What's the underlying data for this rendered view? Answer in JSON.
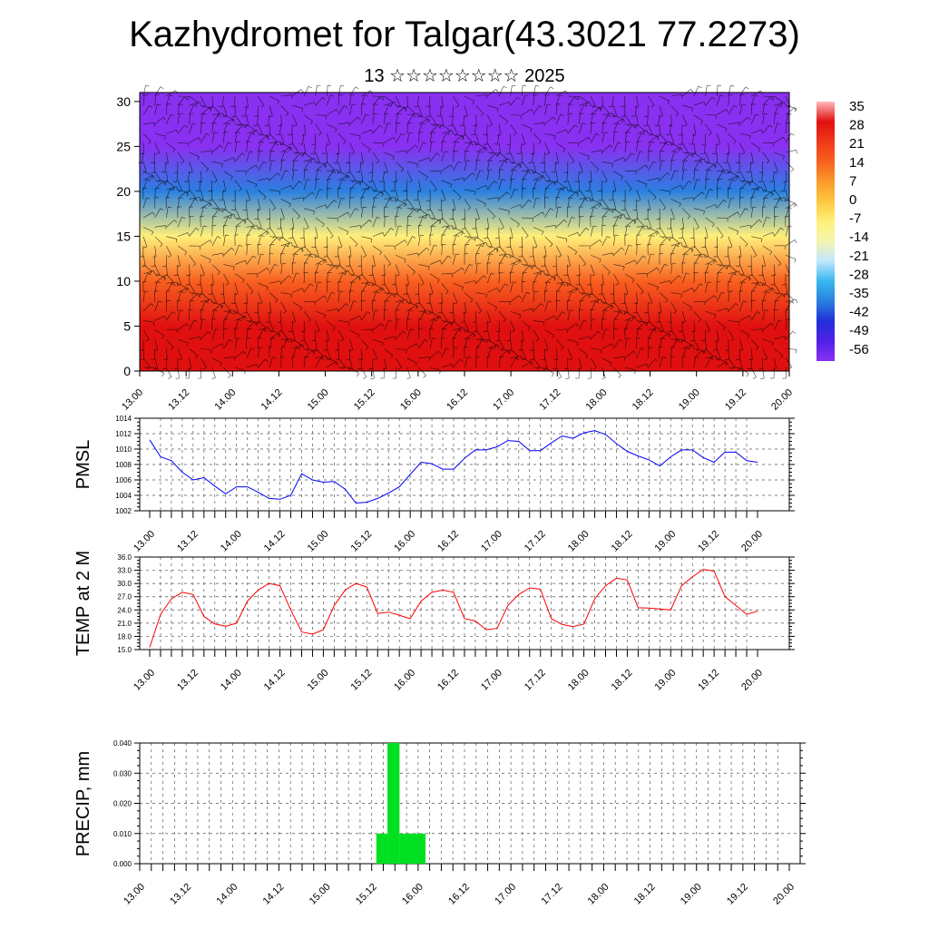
{
  "header": {
    "title": "Kazhydromet for Talgar(43.3021 77.2273)",
    "subtitle": "13 ☆☆☆☆☆☆☆☆ 2025"
  },
  "chart_data": [
    {
      "id": "cross-section",
      "type": "heatmap",
      "x_tick_labels": [
        "13.00",
        "13.12",
        "14.00",
        "14.12",
        "15.00",
        "15.12",
        "16.00",
        "16.12",
        "17.00",
        "17.12",
        "18.00",
        "18.12",
        "19.00",
        "19.12",
        "20.00"
      ],
      "y_ticks": [
        0,
        5,
        10,
        15,
        20,
        25,
        30
      ],
      "ylim": [
        0,
        31
      ],
      "colorbar_labels": [
        "35",
        "28",
        "21",
        "14",
        "7",
        "0",
        "-7",
        "-14",
        "-21",
        "-28",
        "-35",
        "-42",
        "-49",
        "-56"
      ],
      "colorbar_colors": [
        "#ffb8b8",
        "#e01010",
        "#f03818",
        "#f86020",
        "#fb9a2a",
        "#fdc840",
        "#fff07a",
        "#f5f5b0",
        "#bfe6ff",
        "#38b8f0",
        "#2a80e0",
        "#2030d8",
        "#5020e8",
        "#8a30f0"
      ],
      "layers": [
        {
          "z": 0,
          "temp": 33
        },
        {
          "z": 5,
          "temp": 28
        },
        {
          "z": 10,
          "temp": 14
        },
        {
          "z": 15,
          "temp": -5
        },
        {
          "z": 20,
          "temp": -30
        },
        {
          "z": 25,
          "temp": -52
        },
        {
          "z": 31,
          "temp": -60
        }
      ],
      "grid": false
    },
    {
      "id": "pmsl",
      "type": "line",
      "ylabel": "PMSL",
      "ylim": [
        1002,
        1014
      ],
      "y_ticks": [
        1002,
        1004,
        1006,
        1008,
        1010,
        1012,
        1014
      ],
      "x_tick_labels": [
        "13.00",
        "13.12",
        "14.00",
        "14.12",
        "15.00",
        "15.12",
        "16.00",
        "16.12",
        "17.00",
        "17.12",
        "18.00",
        "18.12",
        "19.00",
        "19.12",
        "20.00"
      ],
      "series": [
        {
          "color": "#0000ff",
          "values": [
            1011.2,
            1009,
            1008.5,
            1007,
            1006,
            1006.3,
            1005.2,
            1004.2,
            1005.1,
            1005.1,
            1004.4,
            1003.6,
            1003.5,
            1004,
            1006.8,
            1006,
            1005.7,
            1005.8,
            1004.8,
            1003,
            1003.1,
            1003.6,
            1004.3,
            1005.1,
            1006.7,
            1008.3,
            1008.1,
            1007.4,
            1007.4,
            1008.8,
            1009.9,
            1009.9,
            1010.3,
            1011.1,
            1011,
            1009.8,
            1009.8,
            1010.8,
            1011.7,
            1011.4,
            1012.1,
            1012.4,
            1011.9,
            1010.7,
            1009.7,
            1009.1,
            1008.6,
            1007.8,
            1009,
            1009.9,
            1009.9,
            1008.9,
            1008.3,
            1009.6,
            1009.6,
            1008.5,
            1008.3
          ]
        }
      ],
      "grid": true
    },
    {
      "id": "t2m",
      "type": "line",
      "ylabel": "TEMP at 2 M",
      "ylim": [
        15,
        36
      ],
      "y_ticks": [
        "15.0",
        "18.0",
        "21.0",
        "24.0",
        "27.0",
        "30.0",
        "33.0",
        "36.0"
      ],
      "x_tick_labels": [
        "13.00",
        "13.12",
        "14.00",
        "14.12",
        "15.00",
        "15.12",
        "16.00",
        "16.12",
        "17.00",
        "17.12",
        "18.00",
        "18.12",
        "19.00",
        "19.12",
        "20.00"
      ],
      "series": [
        {
          "color": "#ff0000",
          "values": [
            15.5,
            23,
            26.5,
            28,
            27.5,
            22.5,
            20.8,
            20.3,
            21,
            26,
            28.5,
            30,
            29.5,
            24,
            19,
            18.5,
            19.5,
            25,
            28.5,
            30,
            29.2,
            23.2,
            23.5,
            22.8,
            22,
            26,
            28,
            28.5,
            28,
            22,
            21.5,
            19.5,
            19.8,
            25,
            27.5,
            29,
            28.7,
            22,
            20.7,
            20.2,
            20.8,
            26.5,
            29.5,
            31.2,
            30.8,
            24.5,
            24.4,
            24.2,
            24,
            29.5,
            31.5,
            33.2,
            32.8,
            27,
            25,
            23,
            23.7
          ]
        }
      ],
      "grid": true
    },
    {
      "id": "precip",
      "type": "bar",
      "ylabel": "PRECIP, mm",
      "ylim": [
        0,
        0.04
      ],
      "y_ticks": [
        "0.000",
        "0.010",
        "0.020",
        "0.030",
        "0.040"
      ],
      "x_tick_labels": [
        "13.00",
        "13.12",
        "14.00",
        "14.12",
        "15.00",
        "15.12",
        "16.00",
        "16.12",
        "17.00",
        "17.12",
        "18.00",
        "18.12",
        "19.00",
        "19.12",
        "20.00"
      ],
      "series": [
        {
          "color": "#00e020",
          "bars": [
            {
              "start": 2.55,
              "end": 2.67,
              "value": 0.01
            },
            {
              "start": 2.67,
              "end": 2.8,
              "value": 0.04
            },
            {
              "start": 2.8,
              "end": 3.08,
              "value": 0.01
            }
          ]
        }
      ],
      "bar_time_unit": "days since 13.00",
      "grid": true
    }
  ]
}
